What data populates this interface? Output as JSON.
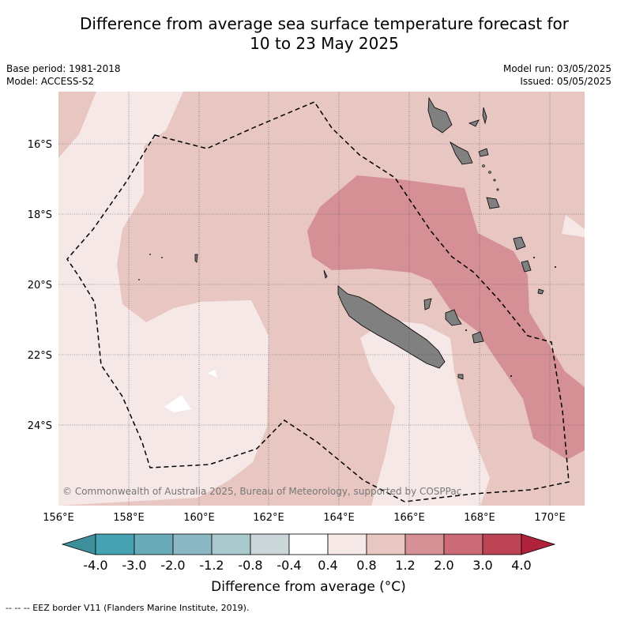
{
  "header": {
    "title_line1": "Difference from average sea surface temperature forecast for",
    "title_line2": "10 to 23 May 2025",
    "base_period": "Base period: 1981-2018",
    "model": "Model: ACCESS-S2",
    "model_run": "Model run: 03/05/2025",
    "issued": "Issued: 05/05/2025"
  },
  "map": {
    "lon_ticks": [
      "156°E",
      "158°E",
      "160°E",
      "162°E",
      "164°E",
      "166°E",
      "168°E",
      "170°E"
    ],
    "lat_ticks": [
      "16°S",
      "18°S",
      "20°S",
      "22°S",
      "24°S"
    ],
    "copyright": "© Commonwealth of Australia 2025, Bureau of Meteorology, supported by COSPPac",
    "colors": {
      "c0": "#f5e8e7",
      "c1": "#e8c7c2",
      "c2": "#d59096",
      "c3": "#ffffff",
      "land": "#808080",
      "grid": "#555555"
    }
  },
  "colorbar": {
    "labels": [
      "-4.0",
      "-3.0",
      "-2.0",
      "-1.2",
      "-0.8",
      "-0.4",
      "0.4",
      "0.8",
      "1.2",
      "2.0",
      "3.0",
      "4.0"
    ],
    "colors": [
      "#3e8f9c",
      "#45a2b2",
      "#6aabba",
      "#8cb8c4",
      "#aac9cd",
      "#cbd6d8",
      "#ffffff",
      "#f5e8e7",
      "#e8c7c2",
      "#d59096",
      "#cc6a77",
      "#bd4454",
      "#b0223b"
    ],
    "title": "Difference from average (°C)"
  },
  "footer": {
    "legend": "--  --  -- EEZ border V11 (Flanders Marine Institute, 2019)."
  }
}
